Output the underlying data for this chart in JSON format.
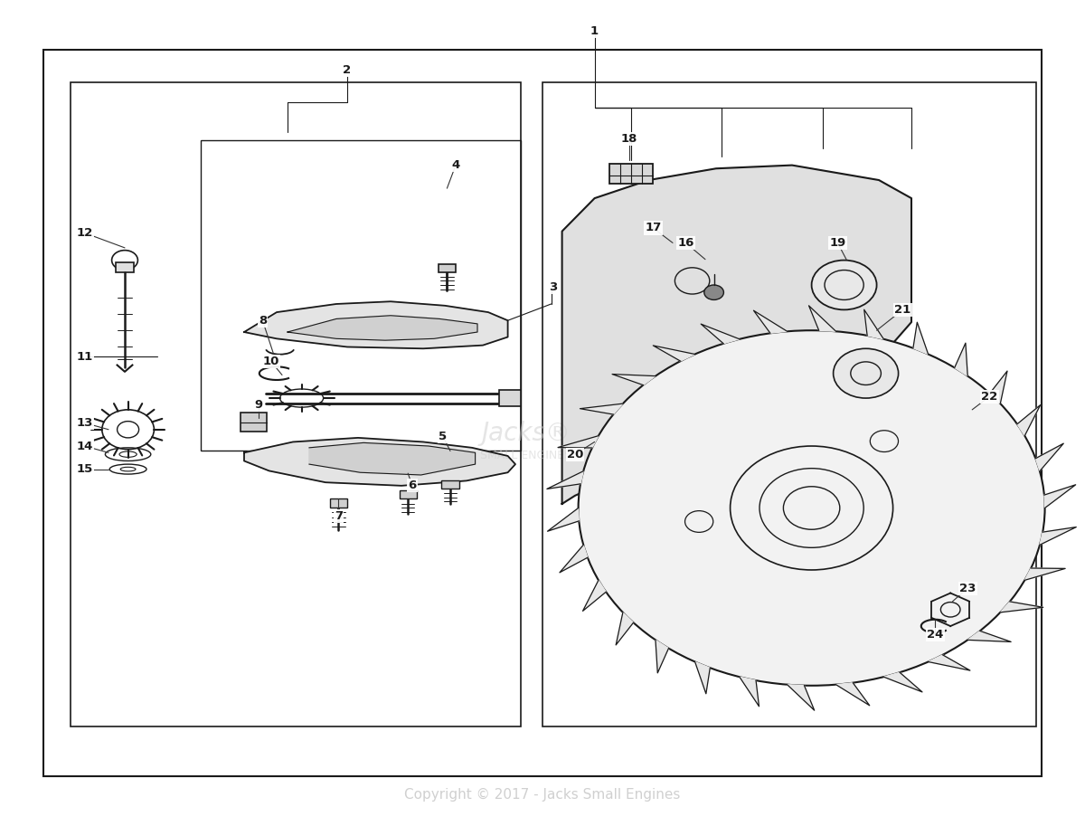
{
  "bg_color": "#ffffff",
  "line_color": "#1a1a1a",
  "label_color": "#1a1a1a",
  "copyright_text": "Copyright © 2017 - Jacks Small Engines",
  "copyright_color": "#d0d0d0",
  "watermark_line1": "Jacks®",
  "watermark_line2": "SMALL ENGINES",
  "watermark_color": "#cccccc",
  "fig_width": 12.0,
  "fig_height": 9.13,
  "dpi": 100
}
